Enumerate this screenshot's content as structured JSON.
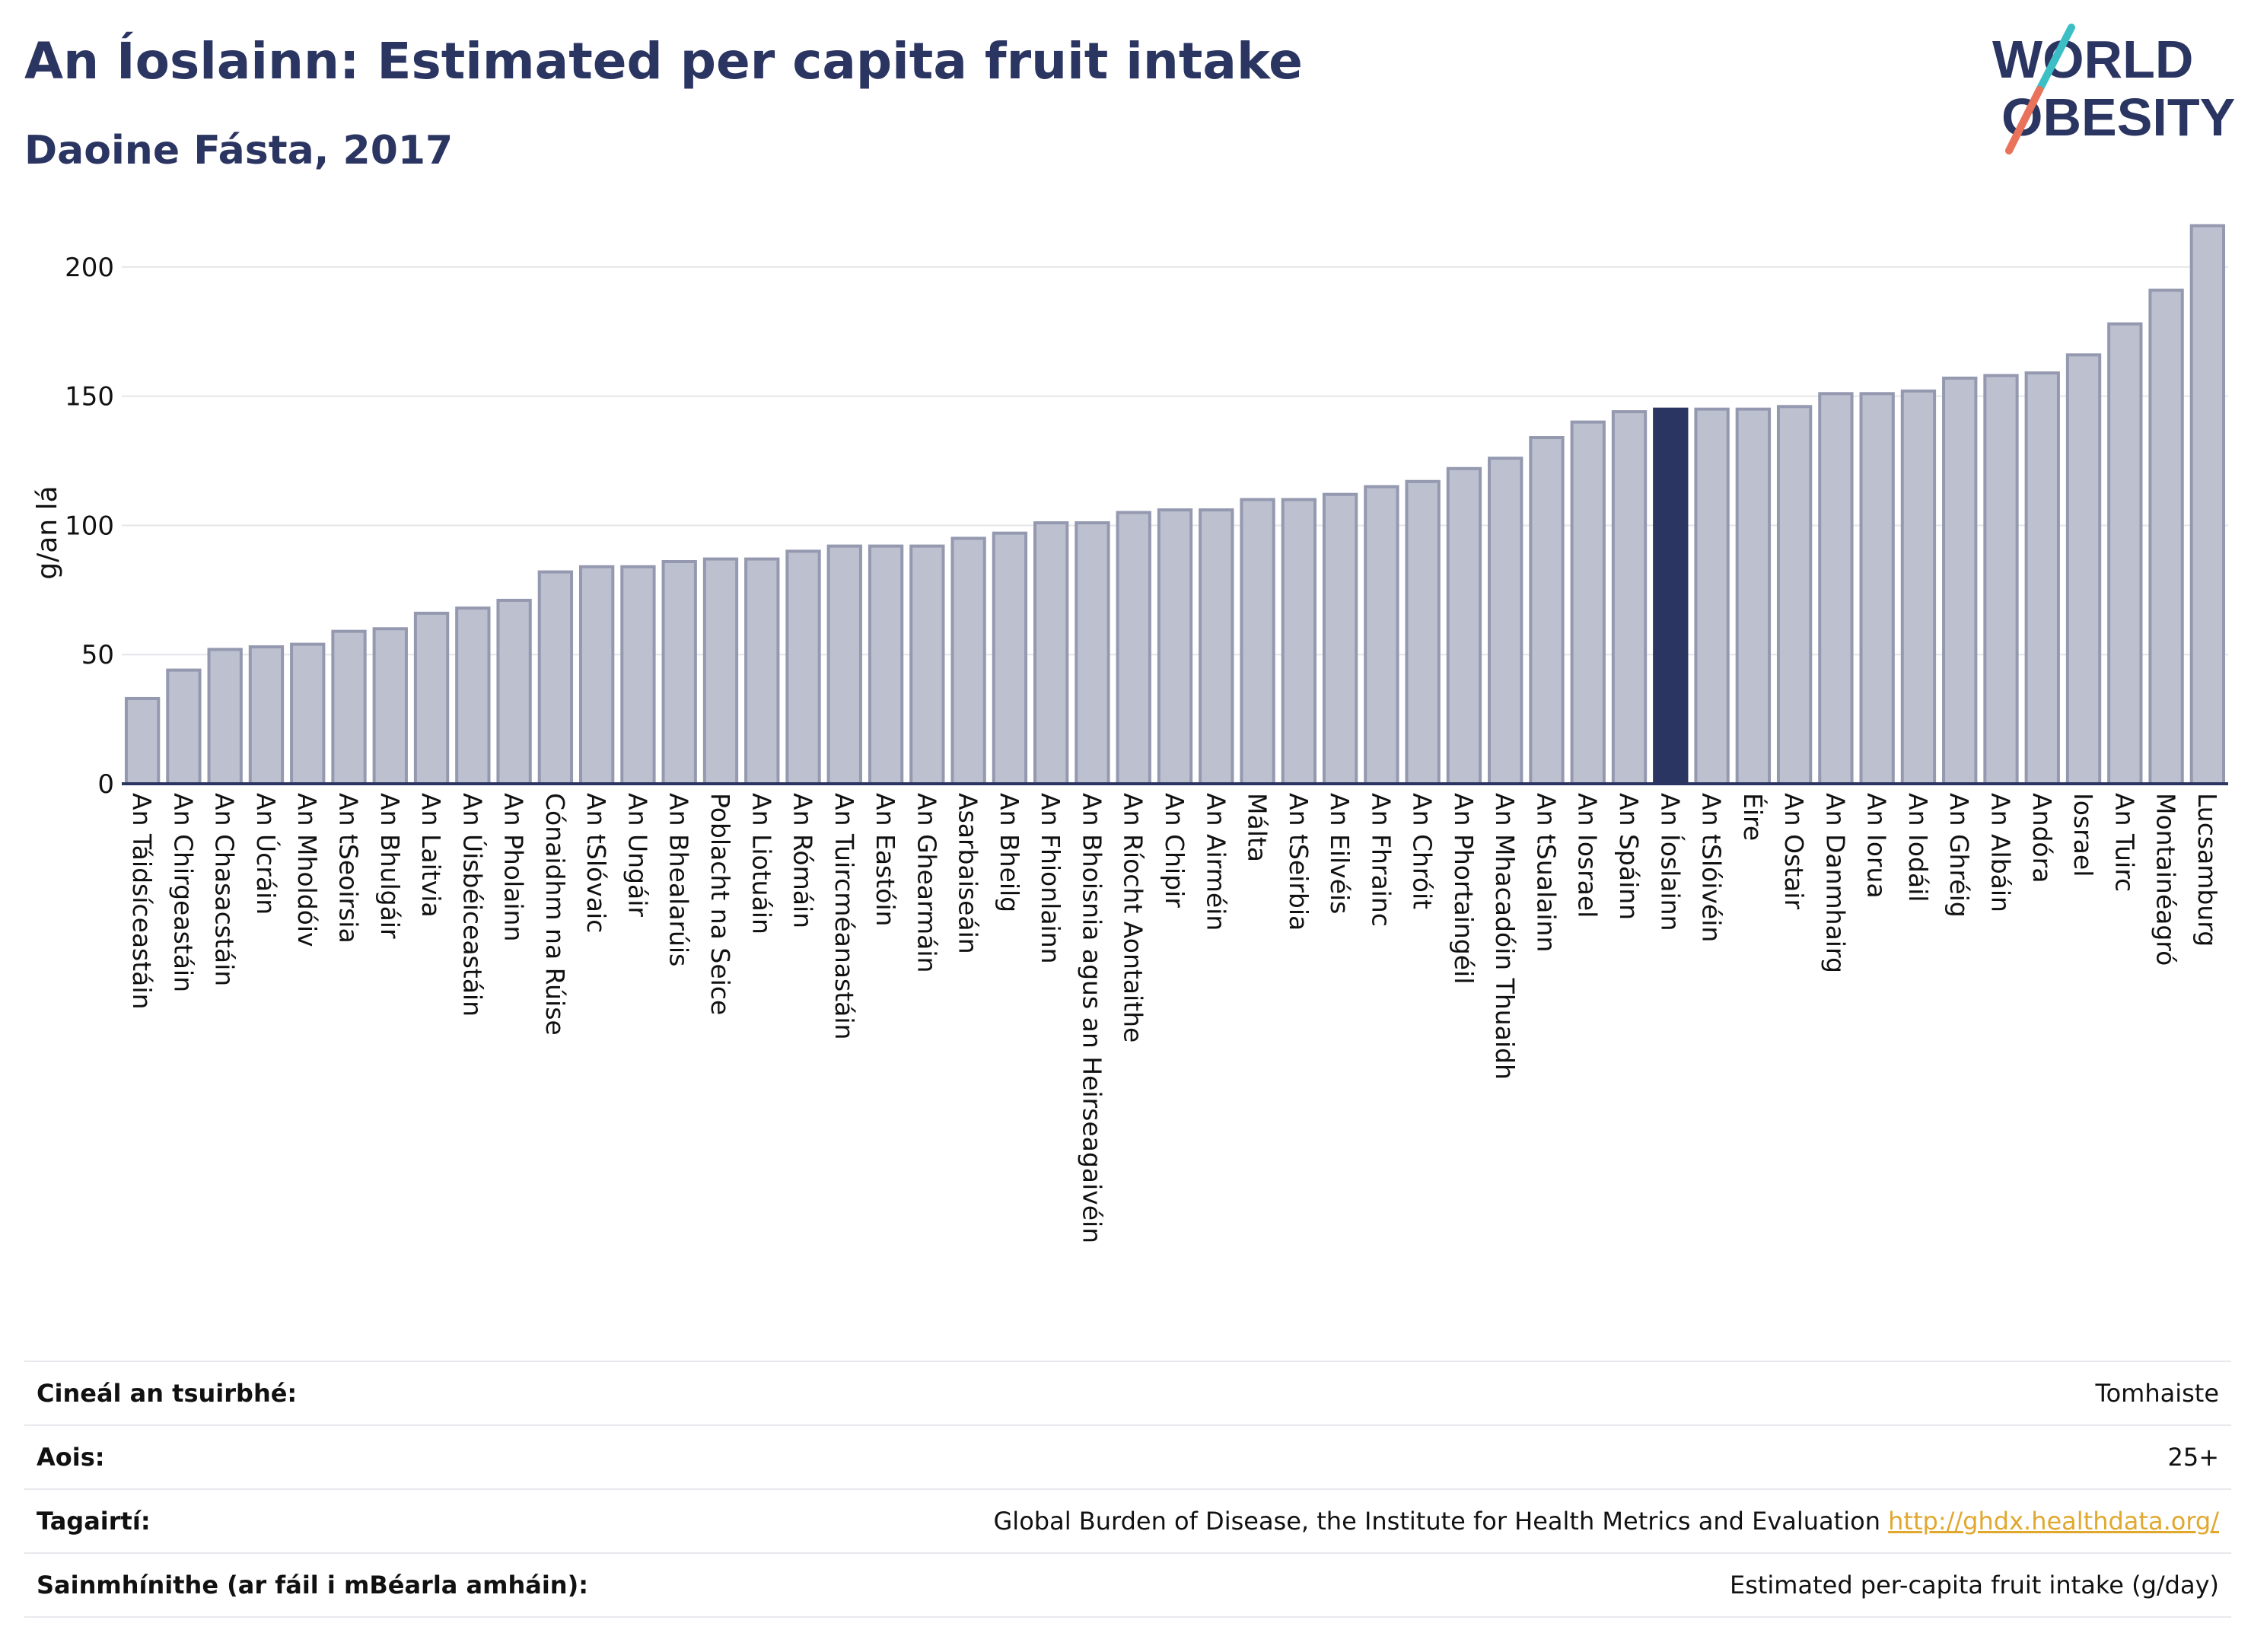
{
  "header": {
    "title": "An Íoslainn: Estimated per capita fruit intake",
    "subtitle": "Daoine Fásta, 2017"
  },
  "logo": {
    "line1": "WORLD",
    "line2": "OBESITY",
    "text_color": "#2b3561",
    "slash_color_top": "#3bbfc4",
    "slash_color_bottom": "#e8735a"
  },
  "colors": {
    "bar": "#bcc0cf",
    "bar_stroke": "#9599b0",
    "highlight": "#2b3561",
    "axis": "#2b3561",
    "grid": "#e6e6ea"
  },
  "chart_data": {
    "type": "bar",
    "ylabel": "g/an lá",
    "ylim": [
      0,
      220
    ],
    "yticks": [
      0,
      50,
      100,
      150,
      200
    ],
    "grid": true,
    "highlight": "An Íoslainn",
    "categories": [
      "An Táidsíceastáin",
      "An Chirgeastáin",
      "An Chasacstáin",
      "An Úcráin",
      "An Mholdóiv",
      "An tSeoirsia",
      "An Bhulgáir",
      "An Laitvia",
      "An Úisbéiceastáin",
      "An Pholainn",
      "Cónaidhm na Rúise",
      "An tSlóvaic",
      "An Ungáir",
      "An Bhealarúis",
      "Poblacht na Seice",
      "An Liotuáin",
      "An Rómáin",
      "An Tuircméanastáin",
      "An Eastóin",
      "An Ghearmáin",
      "Asarbaiseáin",
      "An Bheilg",
      "An Fhionlainn",
      "An Bhoisnia agus an Heirseagaivéin",
      "An Ríocht Aontaithe",
      "An Chipir",
      "An Airméin",
      "Málta",
      "An tSeirbia",
      "An Eilvéis",
      "An Fhrainc",
      "An Chróit",
      "An Phortaingéil",
      "An Mhacadóin Thuaidh",
      "An tSualainn",
      "An Iosrael",
      "An Spáinn",
      "An Íoslainn",
      "An tSlóivéin",
      "Éire",
      "An Ostair",
      "An Danmhairg",
      "An Iorua",
      "An Iodáil",
      "An Ghréig",
      "An Albáin",
      "Andóra",
      "Iosrael",
      "An Tuirc",
      "Montainéagró",
      "Lucsamburg"
    ],
    "values": [
      33,
      44,
      52,
      53,
      54,
      59,
      60,
      66,
      68,
      71,
      82,
      84,
      84,
      86,
      87,
      87,
      90,
      92,
      92,
      92,
      95,
      97,
      101,
      101,
      105,
      106,
      106,
      110,
      110,
      112,
      115,
      117,
      122,
      126,
      134,
      140,
      144,
      145,
      145,
      145,
      146,
      151,
      151,
      152,
      157,
      158,
      159,
      166,
      178,
      191,
      216
    ]
  },
  "info": {
    "rows": [
      {
        "label": "Cineál an tsuirbhé:",
        "value": "Tomhaiste",
        "link": ""
      },
      {
        "label": "Aois:",
        "value": "25+",
        "link": ""
      },
      {
        "label": "Tagairtí:",
        "value": "Global Burden of Disease, the Institute for Health Metrics and Evaluation",
        "link": "http://ghdx.healthdata.org/"
      },
      {
        "label": "Sainmhínithe (ar fáil i mBéarla amháin):",
        "value": "Estimated per-capita fruit intake (g/day)",
        "link": ""
      }
    ]
  }
}
